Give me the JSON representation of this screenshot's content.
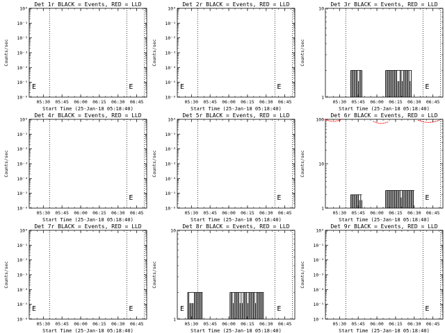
{
  "figure": {
    "start_time_label": "Start Time (25-Jan-18 05:18:40)",
    "ylabel": "Counts/sec",
    "colors": {
      "events": "#000000",
      "lld": "#ff0000"
    }
  },
  "chart_data": [
    {
      "type": "line",
      "title": "Det 1r BLACK = Events, RED = LLD",
      "yscale": "log",
      "ylim": [
        1,
        1e-06
      ],
      "y_ticks": [
        "10⁻⁶",
        "10⁻⁵",
        "10⁻⁴",
        "10⁻³",
        "10⁻²",
        "10⁻¹",
        "10⁰"
      ],
      "x_ticks": [
        "05:30",
        "05:45",
        "06:00",
        "06:15",
        "06:30",
        "06:45"
      ],
      "xlabel": "Start Time (25-Jan-18 05:18:40)",
      "ylabel": "Counts/sec",
      "events": [],
      "lld": [],
      "e_markers": [
        "left",
        "right"
      ]
    },
    {
      "type": "line",
      "title": "Det 2r BLACK = Events, RED = LLD",
      "yscale": "log",
      "ylim": [
        1,
        1e-06
      ],
      "y_ticks": [
        "10⁻⁶",
        "10⁻⁵",
        "10⁻⁴",
        "10⁻³",
        "10⁻²",
        "10⁻¹",
        "10⁰"
      ],
      "x_ticks": [
        "05:30",
        "05:45",
        "06:00",
        "06:15",
        "06:30",
        "06:45"
      ],
      "xlabel": "Start Time (25-Jan-18 05:18:40)",
      "ylabel": "Counts/sec",
      "events": [],
      "lld": [],
      "e_markers": [
        "left",
        "right"
      ]
    },
    {
      "type": "line",
      "title": "Det 3r BLACK = Events, RED = LLD",
      "yscale": "log",
      "ylim": [
        1,
        10
      ],
      "y_ticks": [
        "1",
        "10"
      ],
      "x_ticks": [
        "05:30",
        "05:45",
        "06:00",
        "06:15",
        "06:30",
        "06:45"
      ],
      "xlabel": "Start Time (25-Jan-18 05:18:40)",
      "ylabel": "Counts/sec",
      "events": [
        {
          "range": [
            "05:39",
            "05:48"
          ],
          "max": 2
        },
        {
          "range": [
            "06:07",
            "06:28"
          ],
          "max": 2
        }
      ],
      "lld": [],
      "e_markers": [
        "right"
      ]
    },
    {
      "type": "line",
      "title": "Det 4r BLACK = Events, RED = LLD",
      "yscale": "log",
      "ylim": [
        1,
        1e-06
      ],
      "y_ticks": [
        "10⁻⁶",
        "10⁻⁵",
        "10⁻⁴",
        "10⁻³",
        "10⁻²",
        "10⁻¹",
        "10⁰"
      ],
      "x_ticks": [
        "05:30",
        "05:45",
        "06:00",
        "06:15",
        "06:30",
        "06:45"
      ],
      "xlabel": "Start Time (25-Jan-18 05:18:40)",
      "ylabel": "Counts/sec",
      "events": [],
      "lld": [],
      "e_markers": [
        "right"
      ]
    },
    {
      "type": "line",
      "title": "Det 5r BLACK = Events, RED = LLD",
      "yscale": "log",
      "ylim": [
        1,
        1e-06
      ],
      "y_ticks": [
        "10⁻⁶",
        "10⁻⁵",
        "10⁻⁴",
        "10⁻³",
        "10⁻²",
        "10⁻¹",
        "10⁰"
      ],
      "x_ticks": [
        "05:30",
        "05:45",
        "06:00",
        "06:15",
        "06:30",
        "06:45"
      ],
      "xlabel": "Start Time (25-Jan-18 05:18:40)",
      "ylabel": "Counts/sec",
      "events": [],
      "lld": [],
      "e_markers": [
        "right"
      ]
    },
    {
      "type": "line",
      "title": "Det 6r BLACK = Events, RED = LLD",
      "yscale": "log",
      "ylim": [
        1,
        100
      ],
      "y_ticks": [
        "1",
        "10",
        "100"
      ],
      "x_ticks": [
        "05:30",
        "05:45",
        "06:00",
        "06:15",
        "06:30",
        "06:45"
      ],
      "xlabel": "Start Time (25-Jan-18 05:18:40)",
      "ylabel": "Counts/sec",
      "events": [
        {
          "range": [
            "05:39",
            "05:48"
          ],
          "max": 2
        },
        {
          "range": [
            "06:07",
            "06:30"
          ],
          "max": 2.5
        }
      ],
      "lld": [
        {
          "range": [
            "05:18",
            "05:32"
          ],
          "value": 100
        },
        {
          "range": [
            "05:57",
            "06:10"
          ],
          "value": 90
        },
        {
          "range": [
            "06:33",
            "06:50"
          ],
          "value": 95
        }
      ],
      "e_markers": [
        "right"
      ]
    },
    {
      "type": "line",
      "title": "Det 7r BLACK = Events, RED = LLD",
      "yscale": "log",
      "ylim": [
        1,
        1e-06
      ],
      "y_ticks": [
        "10⁻⁶",
        "10⁻⁵",
        "10⁻⁴",
        "10⁻³",
        "10⁻²",
        "10⁻¹",
        "10⁰"
      ],
      "x_ticks": [
        "05:30",
        "05:45",
        "06:00",
        "06:15",
        "06:30",
        "06:45"
      ],
      "xlabel": "Start Time (25-Jan-18 05:18:40)",
      "ylabel": "Counts/sec",
      "events": [],
      "lld": [],
      "e_markers": [
        "left",
        "right"
      ]
    },
    {
      "type": "line",
      "title": "Det 8r BLACK = Events, RED = LLD",
      "yscale": "log",
      "ylim": [
        1,
        10
      ],
      "y_ticks": [
        "1",
        "10"
      ],
      "x_ticks": [
        "05:30",
        "05:45",
        "06:00",
        "06:15",
        "06:30",
        "06:45"
      ],
      "xlabel": "Start Time (25-Jan-18 05:18:40)",
      "ylabel": "Counts/sec",
      "events": [
        {
          "range": [
            "05:27",
            "05:39"
          ],
          "max": 2
        },
        {
          "range": [
            "06:01",
            "06:28"
          ],
          "max": 2
        }
      ],
      "lld": [],
      "e_markers": [
        "left",
        "right"
      ]
    },
    {
      "type": "line",
      "title": "Det 9r BLACK = Events, RED = LLD",
      "yscale": "log",
      "ylim": [
        1,
        1e-06
      ],
      "y_ticks": [
        "10⁻⁶",
        "10⁻⁵",
        "10⁻⁴",
        "10⁻³",
        "10⁻²",
        "10⁻¹",
        "10⁰"
      ],
      "x_ticks": [
        "05:30",
        "05:45",
        "06:00",
        "06:15",
        "06:30",
        "06:45"
      ],
      "xlabel": "Start Time (25-Jan-18 05:18:40)",
      "ylabel": "Counts/sec",
      "events": [],
      "lld": [],
      "e_markers": [
        "right"
      ]
    }
  ]
}
